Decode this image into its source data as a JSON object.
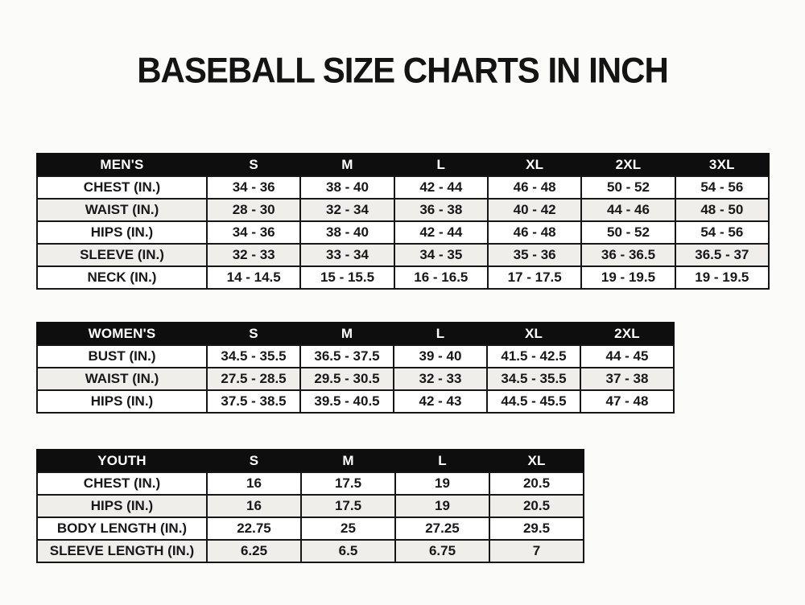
{
  "title": "BASEBALL SIZE CHARTS IN INCH",
  "colors": {
    "header_bg": "#0e0e0e",
    "header_text": "#ffffff",
    "row_alt_bg": "#f0eeeb",
    "border_color": "#161616",
    "text_color": "#181818",
    "page_bg": "#fbfbfa"
  },
  "tables": {
    "mens": {
      "header": [
        "MEN'S",
        "S",
        "M",
        "L",
        "XL",
        "2XL",
        "3XL"
      ],
      "rows": [
        [
          "CHEST (IN.)",
          "34 - 36",
          "38 - 40",
          "42 - 44",
          "46 - 48",
          "50 - 52",
          "54 - 56"
        ],
        [
          "WAIST (IN.)",
          "28 - 30",
          "32 - 34",
          "36 - 38",
          "40 - 42",
          "44 - 46",
          "48 - 50"
        ],
        [
          "HIPS (IN.)",
          "34 - 36",
          "38 - 40",
          "42 - 44",
          "46 - 48",
          "50 - 52",
          "54 - 56"
        ],
        [
          "SLEEVE (IN.)",
          "32 - 33",
          "33 - 34",
          "34 - 35",
          "35 - 36",
          "36 - 36.5",
          "36.5 - 37"
        ],
        [
          "NECK (IN.)",
          "14 - 14.5",
          "15 - 15.5",
          "16 - 16.5",
          "17 - 17.5",
          "19 - 19.5",
          "19 - 19.5"
        ]
      ]
    },
    "womens": {
      "header": [
        "WOMEN'S",
        "S",
        "M",
        "L",
        "XL",
        "2XL"
      ],
      "rows": [
        [
          "BUST (IN.)",
          "34.5 - 35.5",
          "36.5 - 37.5",
          "39 - 40",
          "41.5 - 42.5",
          "44 - 45"
        ],
        [
          "WAIST (IN.)",
          "27.5 - 28.5",
          "29.5 - 30.5",
          "32 - 33",
          "34.5 - 35.5",
          "37 - 38"
        ],
        [
          "HIPS (IN.)",
          "37.5 - 38.5",
          "39.5 - 40.5",
          "42 - 43",
          "44.5 - 45.5",
          "47 - 48"
        ]
      ]
    },
    "youth": {
      "header": [
        "YOUTH",
        "S",
        "M",
        "L",
        "XL"
      ],
      "rows": [
        [
          "CHEST (IN.)",
          "16",
          "17.5",
          "19",
          "20.5"
        ],
        [
          "HIPS (IN.)",
          "16",
          "17.5",
          "19",
          "20.5"
        ],
        [
          "BODY LENGTH (IN.)",
          "22.75",
          "25",
          "27.25",
          "29.5"
        ],
        [
          "SLEEVE LENGTH (IN.)",
          "6.25",
          "6.5",
          "6.75",
          "7"
        ]
      ]
    }
  }
}
